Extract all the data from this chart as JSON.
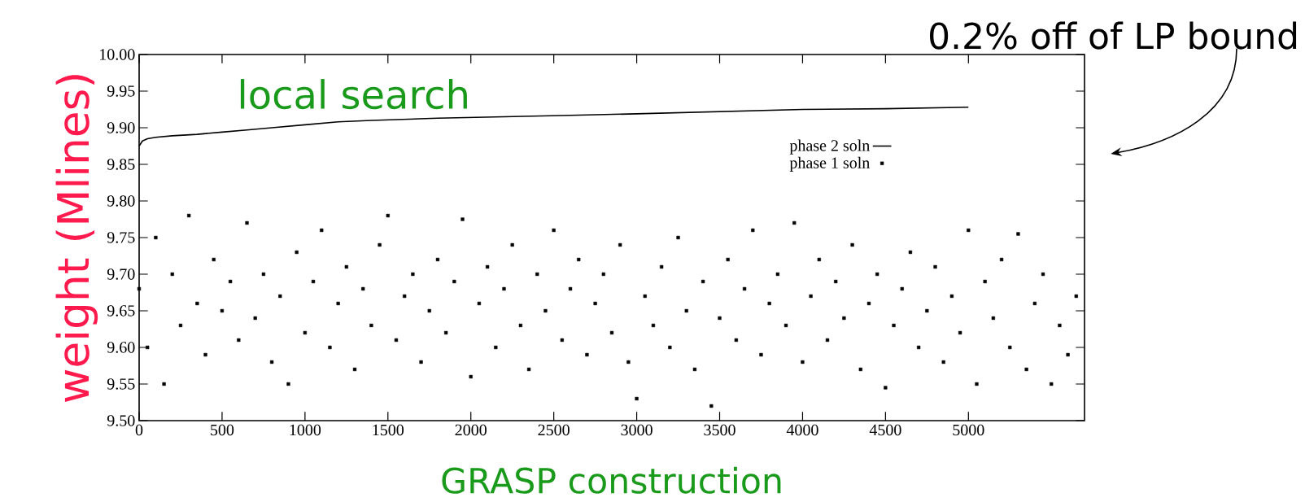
{
  "chart_data": {
    "type": "scatter",
    "ylabel": "weight (Mlines)",
    "annotations": [
      "local search",
      "GRASP construction",
      "0.2% off of LP bound"
    ],
    "xlim": [
      0,
      5700
    ],
    "ylim": [
      9.5,
      10.0
    ],
    "xticks": [
      0,
      500,
      1000,
      1500,
      2000,
      2500,
      3000,
      3500,
      4000,
      4500,
      5000
    ],
    "yticks": [
      {
        "value": 9.5,
        "label": "9.50"
      },
      {
        "value": 9.55,
        "label": "9.55"
      },
      {
        "value": 9.6,
        "label": "9.60"
      },
      {
        "value": 9.65,
        "label": "9.65"
      },
      {
        "value": 9.7,
        "label": "9.70"
      },
      {
        "value": 9.75,
        "label": "9.75"
      },
      {
        "value": 9.8,
        "label": "9.80"
      },
      {
        "value": 9.85,
        "label": "9.85"
      },
      {
        "value": 9.9,
        "label": "9.90"
      },
      {
        "value": 9.95,
        "label": "9.95"
      },
      {
        "value": 10.0,
        "label": "10.00"
      }
    ],
    "legend": "top right",
    "series": [
      {
        "name": "phase 2 soln",
        "type": "line",
        "marker": "none",
        "line_style": "solid",
        "color": "#000000",
        "x": [
          0,
          20,
          50,
          100,
          200,
          350,
          500,
          650,
          800,
          1000,
          1200,
          1400,
          1800,
          2200,
          2600,
          3000,
          3500,
          4000,
          4500,
          5000
        ],
        "values": [
          9.875,
          9.882,
          9.885,
          9.887,
          9.889,
          9.891,
          9.894,
          9.897,
          9.9,
          9.904,
          9.908,
          9.91,
          9.913,
          9.915,
          9.917,
          9.919,
          9.922,
          9.925,
          9.926,
          9.928
        ]
      },
      {
        "name": "phase 1 soln",
        "marker": "square",
        "color": "#000000",
        "x": [
          0,
          50,
          100,
          150,
          200,
          250,
          300,
          350,
          400,
          450,
          500,
          550,
          600,
          650,
          700,
          750,
          800,
          850,
          900,
          950,
          1000,
          1050,
          1100,
          1150,
          1200,
          1250,
          1300,
          1350,
          1400,
          1450,
          1500,
          1550,
          1600,
          1650,
          1700,
          1750,
          1800,
          1850,
          1900,
          1950,
          2000,
          2050,
          2100,
          2150,
          2200,
          2250,
          2300,
          2350,
          2400,
          2450,
          2500,
          2550,
          2600,
          2650,
          2700,
          2750,
          2800,
          2850,
          2900,
          2950,
          3000,
          3050,
          3100,
          3150,
          3200,
          3250,
          3300,
          3350,
          3400,
          3450,
          3500,
          3550,
          3600,
          3650,
          3700,
          3750,
          3800,
          3850,
          3900,
          3950,
          4000,
          4050,
          4100,
          4150,
          4200,
          4250,
          4300,
          4350,
          4400,
          4450,
          4500,
          4550,
          4600,
          4650,
          4700,
          4750,
          4800,
          4850,
          4900,
          4950,
          5000,
          5050,
          5100,
          5150,
          5200,
          5250,
          5300,
          5350,
          5400,
          5450,
          5500,
          5550,
          5600,
          5650
        ],
        "values": [
          9.68,
          9.6,
          9.75,
          9.55,
          9.7,
          9.63,
          9.78,
          9.66,
          9.59,
          9.72,
          9.65,
          9.69,
          9.61,
          9.77,
          9.64,
          9.7,
          9.58,
          9.67,
          9.55,
          9.73,
          9.62,
          9.69,
          9.76,
          9.6,
          9.66,
          9.71,
          9.57,
          9.68,
          9.63,
          9.74,
          9.78,
          9.61,
          9.67,
          9.7,
          9.58,
          9.65,
          9.72,
          9.62,
          9.69,
          9.775,
          9.56,
          9.66,
          9.71,
          9.6,
          9.68,
          9.74,
          9.63,
          9.57,
          9.7,
          9.65,
          9.76,
          9.61,
          9.68,
          9.72,
          9.59,
          9.66,
          9.7,
          9.62,
          9.74,
          9.58,
          9.53,
          9.67,
          9.63,
          9.71,
          9.6,
          9.75,
          9.65,
          9.57,
          9.69,
          9.52,
          9.64,
          9.72,
          9.61,
          9.68,
          9.76,
          9.59,
          9.66,
          9.7,
          9.63,
          9.77,
          9.58,
          9.67,
          9.72,
          9.61,
          9.69,
          9.64,
          9.74,
          9.57,
          9.66,
          9.7,
          9.545,
          9.63,
          9.68,
          9.73,
          9.6,
          9.65,
          9.71,
          9.58,
          9.67,
          9.62,
          9.76,
          9.55,
          9.69,
          9.64,
          9.72,
          9.6,
          9.755,
          9.57,
          9.66,
          9.7,
          9.55,
          9.63,
          9.59,
          9.67
        ]
      }
    ]
  }
}
